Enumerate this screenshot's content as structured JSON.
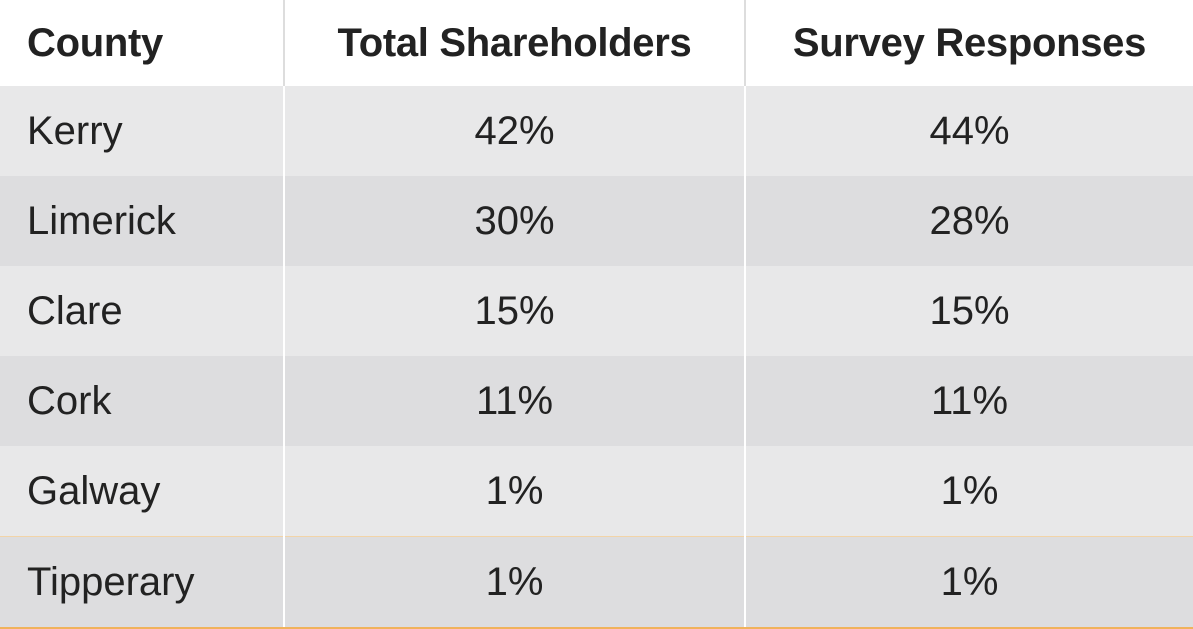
{
  "table": {
    "headers": [
      "County",
      "Total Shareholders",
      "Survey Responses"
    ],
    "rows": [
      [
        "Kerry",
        "42%",
        "44%"
      ],
      [
        "Limerick",
        "30%",
        "28%"
      ],
      [
        "Clare",
        "15%",
        "15%"
      ],
      [
        "Cork",
        "11%",
        "11%"
      ],
      [
        "Galway",
        "1%",
        "1%"
      ],
      [
        "Tipperary",
        "1%",
        "1%"
      ]
    ]
  },
  "colors": {
    "row_light": "#e8e8e9",
    "row_dark": "#dddddf",
    "accent_line": "#f0b25c",
    "text": "#222222"
  }
}
